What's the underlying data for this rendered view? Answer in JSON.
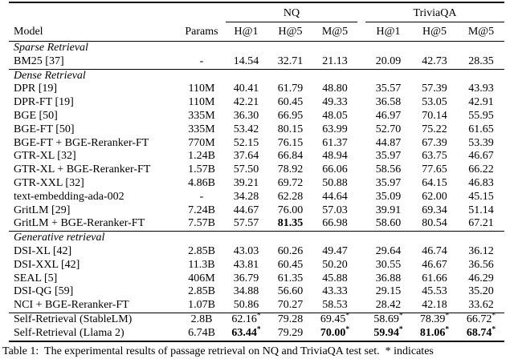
{
  "page": {
    "caption": "Table 1:  The experimental results of passage retrieval on NQ and TriviaQA test set.  * indicates"
  },
  "table": {
    "groups": [
      "NQ",
      "TriviaQA"
    ],
    "headers": {
      "model": "Model",
      "params": "Params",
      "metrics": [
        "H@1",
        "H@5",
        "M@5",
        "H@1",
        "H@5",
        "M@5"
      ]
    },
    "sections": [
      {
        "title": "Sparse Retrieval",
        "rows": [
          {
            "model": "BM25 [37]",
            "params": "-",
            "values": [
              "14.54",
              "32.71",
              "21.13",
              "20.09",
              "42.73",
              "28.35"
            ]
          }
        ]
      },
      {
        "title": "Dense Retrieval",
        "rows": [
          {
            "model": "DPR [19]",
            "params": "110M",
            "values": [
              "40.41",
              "61.79",
              "48.80",
              "35.57",
              "57.39",
              "43.93"
            ]
          },
          {
            "model": "DPR-FT [19]",
            "params": "110M",
            "values": [
              "42.21",
              "60.45",
              "49.33",
              "36.58",
              "53.05",
              "42.91"
            ]
          },
          {
            "model": "BGE [50]",
            "params": "335M",
            "values": [
              "36.30",
              "66.95",
              "48.05",
              "46.97",
              "70.14",
              "55.95"
            ]
          },
          {
            "model": "BGE-FT [50]",
            "params": "335M",
            "values": [
              "53.42",
              "80.15",
              "63.99",
              "52.70",
              "75.22",
              "61.65"
            ]
          },
          {
            "model": "BGE-FT + BGE-Reranker-FT",
            "params": "770M",
            "values": [
              "52.15",
              "76.15",
              "61.37",
              "44.87",
              "67.39",
              "53.39"
            ]
          },
          {
            "model": "GTR-XL [32]",
            "params": "1.24B",
            "values": [
              "37.64",
              "66.84",
              "48.94",
              "35.97",
              "63.75",
              "46.67"
            ]
          },
          {
            "model": "GTR-XL + BGE-Reranker-FT",
            "params": "1.57B",
            "values": [
              "57.50",
              "78.92",
              "66.06",
              "58.56",
              "77.65",
              "66.22"
            ]
          },
          {
            "model": "GTR-XXL [32]",
            "params": "4.86B",
            "values": [
              "39.21",
              "69.72",
              "50.88",
              "35.97",
              "64.15",
              "46.83"
            ]
          },
          {
            "model": "text-embedding-ada-002",
            "params": "-",
            "values": [
              "34.28",
              "62.28",
              "44.64",
              "35.09",
              "62.00",
              "45.15"
            ]
          },
          {
            "model": "GritLM [29]",
            "params": "7.24B",
            "values": [
              "44.67",
              "76.00",
              "57.03",
              "39.91",
              "69.34",
              "51.14"
            ]
          },
          {
            "model": "GritLM + BGE-Reranker-FT",
            "params": "7.57B",
            "values": [
              "57.57",
              {
                "v": "81.35",
                "bold": true
              },
              "66.98",
              "58.60",
              "80.54",
              "67.21"
            ]
          }
        ]
      },
      {
        "title": "Generative retrieval",
        "rows": [
          {
            "model": "DSI-XL [42]",
            "params": "2.85B",
            "values": [
              "43.03",
              "60.26",
              "49.47",
              "29.64",
              "46.74",
              "36.12"
            ]
          },
          {
            "model": "DSI-XXL [42]",
            "params": "11.3B",
            "values": [
              "43.81",
              "60.45",
              "50.20",
              "30.55",
              "46.67",
              "36.56"
            ]
          },
          {
            "model": "SEAL [5]",
            "params": "406M",
            "values": [
              "36.79",
              "61.35",
              "45.88",
              "36.88",
              "61.66",
              "46.29"
            ]
          },
          {
            "model": "DSI-QG [59]",
            "params": "2.85B",
            "values": [
              "34.88",
              "56.60",
              "43.33",
              "29.15",
              "45.53",
              "35.20"
            ]
          },
          {
            "model": "NCI + BGE-Reranker-FT",
            "params": "1.07B",
            "values": [
              "50.86",
              "70.27",
              "58.53",
              "28.42",
              "42.18",
              "33.62"
            ]
          }
        ]
      },
      {
        "title": null,
        "rows": [
          {
            "model": "Self-Retrieval (StableLM)",
            "params": "2.8B",
            "values": [
              {
                "v": "62.16",
                "star": true
              },
              "79.28",
              {
                "v": "69.45",
                "star": true
              },
              {
                "v": "58.69",
                "star": true
              },
              {
                "v": "78.39",
                "star": true
              },
              {
                "v": "66.72",
                "star": true
              }
            ]
          },
          {
            "model": "Self-Retrieval (Llama 2)",
            "params": "6.74B",
            "values": [
              {
                "v": "63.44",
                "star": true,
                "bold": true
              },
              "79.29",
              {
                "v": "70.00",
                "star": true,
                "bold": true
              },
              {
                "v": "59.94",
                "star": true,
                "bold": true
              },
              {
                "v": "81.06",
                "star": true,
                "bold": true
              },
              {
                "v": "68.74",
                "star": true,
                "bold": true
              }
            ]
          }
        ]
      }
    ]
  }
}
